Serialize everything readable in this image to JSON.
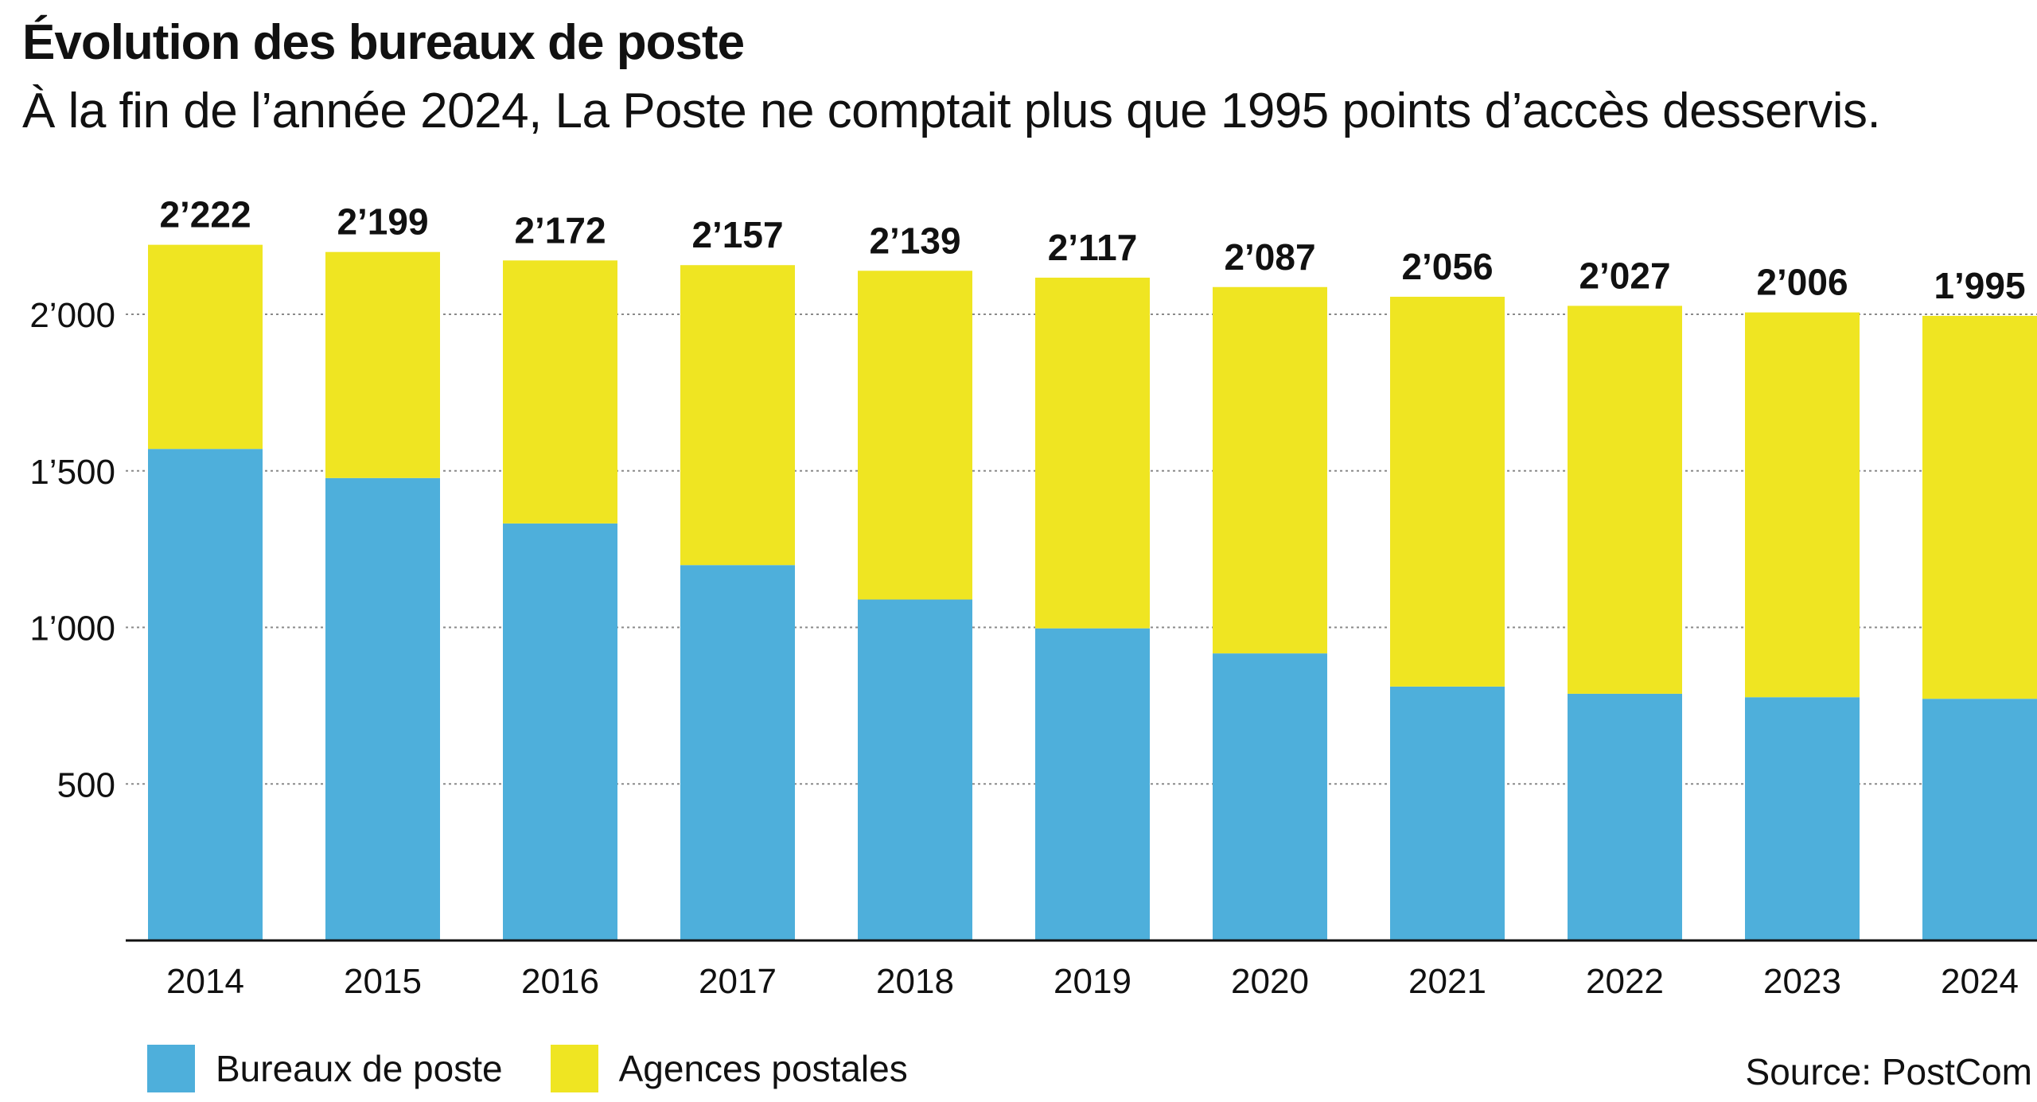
{
  "title": "Évolution des bureaux de poste",
  "subtitle": "À la fin de l’année 2024, La Poste ne comptait plus que 1995 points d’accès desservis.",
  "source": "Source: PostCom",
  "colors": {
    "bureaux": "#4EAFDB",
    "agences": "#EFE522",
    "grid": "#8a8a8a",
    "axis": "#111111"
  },
  "legend": [
    {
      "label": "Bureaux de poste",
      "color": "#4EAFDB"
    },
    {
      "label": "Agences postales",
      "color": "#EFE522"
    }
  ],
  "chart_data": {
    "type": "bar",
    "stacked": true,
    "categories": [
      "2014",
      "2015",
      "2016",
      "2017",
      "2018",
      "2019",
      "2020",
      "2021",
      "2022",
      "2023",
      "2024"
    ],
    "series": [
      {
        "name": "Bureaux de poste",
        "values": [
          1570,
          1477,
          1332,
          1199,
          1089,
          997,
          917,
          811,
          788,
          777,
          772
        ]
      },
      {
        "name": "Agences postales",
        "values": [
          652,
          722,
          840,
          958,
          1050,
          1120,
          1170,
          1245,
          1239,
          1229,
          1223
        ]
      }
    ],
    "totals": [
      2222,
      2199,
      2172,
      2157,
      2139,
      2117,
      2087,
      2056,
      2027,
      2006,
      1995
    ],
    "total_labels": [
      "2’222",
      "2’199",
      "2’172",
      "2’157",
      "2’139",
      "2’117",
      "2’087",
      "2’056",
      "2’027",
      "2’006",
      "1’995"
    ],
    "yticks": [
      500,
      1000,
      1500,
      2000
    ],
    "ytick_labels": [
      "500",
      "1’000",
      "1’500",
      "2’000"
    ],
    "ylim": [
      0,
      2220
    ],
    "grid": true,
    "legend_position": "bottom-left"
  }
}
